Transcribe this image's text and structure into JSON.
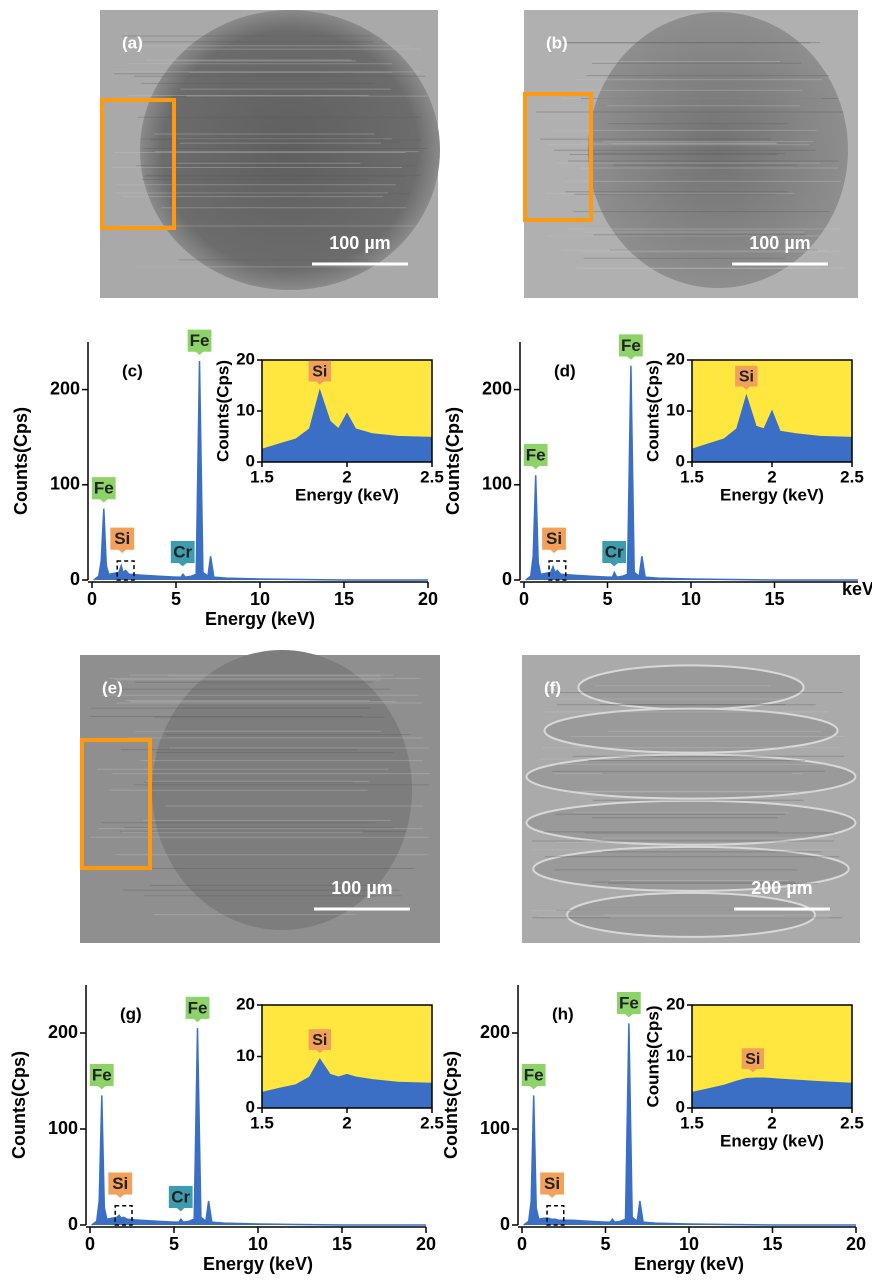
{
  "images": [
    {
      "label": "(a)",
      "scale_bar": "100 µm"
    },
    {
      "label": "(b)",
      "scale_bar": "100 µm"
    },
    {
      "label": "(e)",
      "scale_bar": "100 µm"
    },
    {
      "label": "(f)",
      "scale_bar": "200 µm"
    }
  ],
  "chart_data": [
    {
      "type": "area",
      "panel": "(c)",
      "xlabel": "Energy (keV)",
      "ylabel": "Counts(Cps)",
      "color": "#3b6fc6",
      "xlim": [
        0,
        20
      ],
      "ylim": [
        0,
        250
      ],
      "xticks": [
        0,
        5,
        10,
        15,
        20
      ],
      "yticks": [
        0,
        100,
        200
      ],
      "x": [
        0.1,
        0.4,
        0.55,
        0.7,
        0.85,
        1.0,
        1.3,
        1.6,
        1.74,
        1.85,
        2.0,
        2.2,
        3.0,
        4.0,
        5.0,
        5.3,
        5.41,
        5.55,
        5.9,
        6.2,
        6.4,
        6.6,
        6.9,
        7.06,
        7.25,
        8.0,
        10,
        15,
        20
      ],
      "values": [
        0,
        4,
        20,
        75,
        15,
        6,
        7,
        8,
        15,
        8,
        10,
        6,
        5,
        4,
        3,
        3,
        6,
        3,
        4,
        6,
        230,
        8,
        4,
        25,
        3,
        2,
        1,
        0,
        0
      ],
      "annotations": [
        {
          "text": "Fe",
          "x": 0.7,
          "y": 75,
          "color": "#8ed36a"
        },
        {
          "text": "Fe",
          "x": 6.4,
          "y": 230,
          "color": "#8ed36a"
        },
        {
          "text": "Si",
          "x": 1.8,
          "y": 22,
          "color": "#f3a05a"
        },
        {
          "text": "Cr",
          "x": 5.4,
          "y": 8,
          "color": "#3e9bb0"
        }
      ],
      "inset": {
        "xlabel": "Energy (keV)",
        "ylabel": "Counts(Cps)",
        "background": "#ffe740",
        "xlim": [
          1.5,
          2.5
        ],
        "ylim": [
          0,
          20
        ],
        "xticks": [
          1.5,
          2,
          2.5
        ],
        "yticks": [
          0,
          10,
          20
        ],
        "x": [
          1.5,
          1.6,
          1.7,
          1.78,
          1.84,
          1.9,
          1.95,
          2.0,
          2.05,
          2.15,
          2.3,
          2.5
        ],
        "values": [
          2.5,
          3.5,
          4.5,
          6.5,
          14,
          8,
          6.5,
          9.5,
          6.5,
          5.5,
          5,
          4.8
        ],
        "annotations": [
          {
            "text": "Si",
            "x": 1.84,
            "y": 14,
            "color": "#f3a05a"
          }
        ]
      }
    },
    {
      "type": "area",
      "panel": "(d)",
      "xlabel": "keV",
      "ylabel": "Counts(Cps)",
      "color": "#3b6fc6",
      "xlim": [
        0,
        20
      ],
      "ylim": [
        0,
        250
      ],
      "xticks": [
        0,
        5,
        10,
        15
      ],
      "yticks": [
        0,
        100,
        200
      ],
      "x": [
        0.1,
        0.4,
        0.55,
        0.7,
        0.85,
        1.0,
        1.3,
        1.6,
        1.74,
        1.85,
        2.0,
        2.2,
        3.0,
        4.0,
        5.0,
        5.3,
        5.41,
        5.55,
        5.9,
        6.2,
        6.4,
        6.6,
        6.9,
        7.06,
        7.25,
        8.0,
        10,
        15,
        20
      ],
      "values": [
        0,
        4,
        25,
        110,
        18,
        6,
        7,
        8,
        14,
        8,
        10,
        6,
        5,
        4,
        3,
        3,
        8,
        3,
        4,
        6,
        225,
        8,
        4,
        25,
        3,
        2,
        1,
        0,
        0
      ],
      "annotations": [
        {
          "text": "Fe",
          "x": 0.7,
          "y": 110,
          "color": "#8ed36a"
        },
        {
          "text": "Fe",
          "x": 6.4,
          "y": 225,
          "color": "#8ed36a"
        },
        {
          "text": "Si",
          "x": 1.8,
          "y": 22,
          "color": "#f3a05a"
        },
        {
          "text": "Cr",
          "x": 5.4,
          "y": 8,
          "color": "#3e9bb0"
        }
      ],
      "inset": {
        "xlabel": "Energy (keV)",
        "ylabel": "Counts(Cps)",
        "background": "#ffe740",
        "xlim": [
          1.5,
          2.5
        ],
        "ylim": [
          0,
          20
        ],
        "xticks": [
          1.5,
          2,
          2.5
        ],
        "yticks": [
          0,
          10,
          20
        ],
        "x": [
          1.5,
          1.6,
          1.7,
          1.78,
          1.84,
          1.9,
          1.95,
          2.0,
          2.05,
          2.15,
          2.3,
          2.5
        ],
        "values": [
          2.5,
          3.5,
          4.5,
          6.5,
          13,
          7,
          6.5,
          10,
          6,
          5.5,
          5,
          4.8
        ],
        "annotations": [
          {
            "text": "Si",
            "x": 1.84,
            "y": 13,
            "color": "#f3a05a"
          }
        ]
      }
    },
    {
      "type": "area",
      "panel": "(g)",
      "xlabel": "Energy (keV)",
      "ylabel": "Counts(Cps)",
      "color": "#3b6fc6",
      "xlim": [
        0,
        20
      ],
      "ylim": [
        0,
        250
      ],
      "xticks": [
        0,
        5,
        10,
        15,
        20
      ],
      "yticks": [
        0,
        100,
        200
      ],
      "x": [
        0.1,
        0.4,
        0.55,
        0.7,
        0.85,
        1.0,
        1.3,
        1.6,
        1.74,
        1.85,
        2.0,
        2.2,
        3.0,
        4.0,
        5.0,
        5.3,
        5.41,
        5.55,
        5.9,
        6.2,
        6.4,
        6.6,
        6.9,
        7.06,
        7.25,
        8.0,
        10,
        15,
        20
      ],
      "values": [
        0,
        4,
        25,
        135,
        18,
        6,
        7,
        8,
        10,
        7,
        8,
        6,
        5,
        4,
        3,
        3,
        6,
        3,
        4,
        6,
        205,
        8,
        4,
        25,
        3,
        2,
        1,
        0,
        0
      ],
      "annotations": [
        {
          "text": "Fe",
          "x": 0.7,
          "y": 135,
          "color": "#8ed36a"
        },
        {
          "text": "Fe",
          "x": 6.4,
          "y": 205,
          "color": "#8ed36a"
        },
        {
          "text": "Si",
          "x": 1.8,
          "y": 22,
          "color": "#f3a05a"
        },
        {
          "text": "Cr",
          "x": 5.4,
          "y": 8,
          "color": "#3e9bb0"
        }
      ],
      "inset": {
        "background": "#ffe740",
        "xlim": [
          1.5,
          2.5
        ],
        "ylim": [
          0,
          20
        ],
        "xticks": [
          1.5,
          2,
          2.5
        ],
        "yticks": [
          0,
          10,
          20
        ],
        "x": [
          1.5,
          1.6,
          1.7,
          1.78,
          1.84,
          1.9,
          1.95,
          2.0,
          2.05,
          2.15,
          2.3,
          2.5
        ],
        "values": [
          3,
          3.8,
          4.5,
          6,
          9.5,
          6.5,
          6,
          6.5,
          6,
          5.5,
          5,
          4.8
        ],
        "annotations": [
          {
            "text": "Si",
            "x": 1.84,
            "y": 9.5,
            "color": "#f3a05a"
          }
        ]
      }
    },
    {
      "type": "area",
      "panel": "(h)",
      "xlabel": "Energy (keV)",
      "ylabel": "Counts(Cps)",
      "color": "#3b6fc6",
      "xlim": [
        0,
        20
      ],
      "ylim": [
        0,
        250
      ],
      "xticks": [
        0,
        5,
        10,
        15,
        20
      ],
      "yticks": [
        0,
        100,
        200
      ],
      "x": [
        0.1,
        0.4,
        0.55,
        0.7,
        0.85,
        1.0,
        1.3,
        1.6,
        1.74,
        1.85,
        2.0,
        2.2,
        3.0,
        4.0,
        5.0,
        5.3,
        5.41,
        5.55,
        5.9,
        6.2,
        6.4,
        6.6,
        6.9,
        7.06,
        7.25,
        8.0,
        10,
        15,
        20
      ],
      "values": [
        0,
        4,
        25,
        135,
        18,
        6,
        7,
        7,
        6,
        6,
        6,
        5,
        5,
        4,
        3,
        3,
        6,
        3,
        4,
        6,
        210,
        8,
        4,
        25,
        3,
        2,
        1,
        0,
        0
      ],
      "annotations": [
        {
          "text": "Fe",
          "x": 0.7,
          "y": 135,
          "color": "#8ed36a"
        },
        {
          "text": "Fe",
          "x": 6.4,
          "y": 210,
          "color": "#8ed36a"
        },
        {
          "text": "Si",
          "x": 1.8,
          "y": 22,
          "color": "#f3a05a"
        }
      ],
      "inset": {
        "xlabel": "Energy (keV)",
        "ylabel": "Counts(Cps)",
        "background": "#ffe740",
        "xlim": [
          1.5,
          2.5
        ],
        "ylim": [
          0,
          20
        ],
        "xticks": [
          1.5,
          2,
          2.5
        ],
        "yticks": [
          0,
          10,
          20
        ],
        "x": [
          1.5,
          1.6,
          1.7,
          1.78,
          1.84,
          1.9,
          1.95,
          2.0,
          2.05,
          2.15,
          2.3,
          2.5
        ],
        "values": [
          3,
          3.7,
          4.4,
          5.2,
          5.7,
          5.8,
          5.8,
          5.7,
          5.6,
          5.4,
          5.1,
          4.8
        ],
        "annotations": [
          {
            "text": "Si",
            "x": 1.88,
            "y": 5.8,
            "color": "#f3a05a"
          }
        ]
      }
    }
  ]
}
